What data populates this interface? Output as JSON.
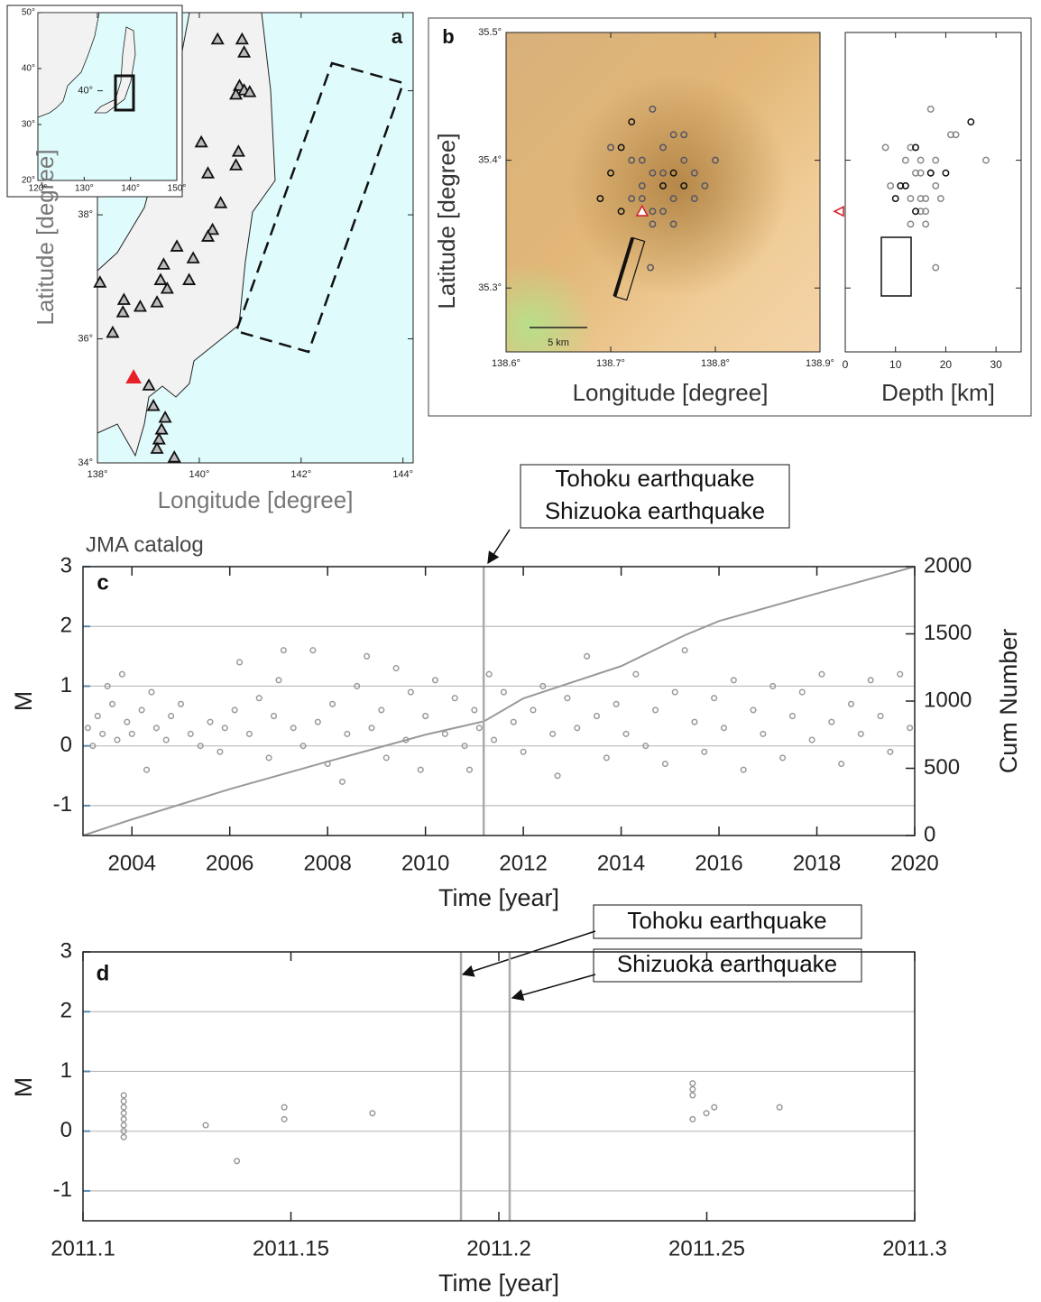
{
  "chart_data": [
    {
      "type": "map",
      "label": "a",
      "xlabel": "Longitude [degree]",
      "ylabel": "Latitude [degree]",
      "xlim": [
        138,
        144.2
      ],
      "ylim": [
        34,
        41.26
      ],
      "xticks": [
        {
          "value": 138,
          "label": "138°"
        },
        {
          "value": 140,
          "label": "140°"
        },
        {
          "value": 142,
          "label": "142°"
        },
        {
          "value": 144,
          "label": "144°"
        }
      ],
      "yticks": [
        {
          "value": 34,
          "label": "34°"
        },
        {
          "value": 36,
          "label": "36°"
        },
        {
          "value": 38,
          "label": "38°"
        },
        {
          "value": 40,
          "label": "40°"
        }
      ],
      "stations": {
        "lon": [
          140.36,
          140.84,
          140.88,
          140.79,
          140.88,
          140.72,
          140.99,
          140.04,
          140.77,
          140.72,
          140.17,
          140.42,
          140.26,
          140.17,
          139.56,
          139.88,
          139.3,
          139.8,
          139.24,
          139.37,
          139.17,
          138.52,
          138.84,
          138.5,
          138.05,
          138.3,
          139.01,
          139.1,
          139.33,
          139.26,
          139.21,
          139.17,
          139.51
        ],
        "lat": [
          40.83,
          40.83,
          40.62,
          40.08,
          40.01,
          39.94,
          39.98,
          39.17,
          39.02,
          38.8,
          38.67,
          38.19,
          37.76,
          37.65,
          37.49,
          37.3,
          37.2,
          36.95,
          36.95,
          36.81,
          36.59,
          36.63,
          36.52,
          36.43,
          36.91,
          36.1,
          35.25,
          34.92,
          34.73,
          34.54,
          34.38,
          34.23,
          34.09
        ]
      },
      "volcano": {
        "lon": [
          138.71
        ],
        "lat": [
          35.38
        ],
        "color": "#e8202a"
      },
      "inset": {
        "xlim": [
          120,
          150
        ],
        "ylim": [
          20,
          50
        ],
        "xticks": [
          {
            "value": 120,
            "label": "120°"
          },
          {
            "value": 130,
            "label": "130°"
          },
          {
            "value": 140,
            "label": "140°"
          },
          {
            "value": 150,
            "label": "150°"
          }
        ],
        "yticks": [
          {
            "value": 20,
            "label": "20°"
          },
          {
            "value": 30,
            "label": "30°"
          },
          {
            "value": 40,
            "label": "40°"
          },
          {
            "value": 50,
            "label": "50°"
          }
        ]
      }
    },
    {
      "type": "map",
      "label": "b",
      "xlabel": "Longitude [degree]",
      "ylabel": "Latitude [degree]",
      "xlim": [
        138.6,
        138.9
      ],
      "ylim": [
        35.25,
        35.5
      ],
      "xticks": [
        {
          "value": 138.6,
          "label": "138.6°"
        },
        {
          "value": 138.7,
          "label": "138.7°"
        },
        {
          "value": 138.8,
          "label": "138.8°"
        },
        {
          "value": 138.9,
          "label": "138.9°"
        }
      ],
      "yticks": [
        {
          "value": 35.3,
          "label": "35.3°"
        },
        {
          "value": 35.4,
          "label": "35.4°"
        },
        {
          "value": 35.5,
          "label": "35.5°"
        }
      ],
      "scale_label": "5 km",
      "events": {
        "lon": [
          138.75,
          138.74,
          138.76,
          138.73,
          138.77,
          138.72,
          138.78,
          138.75,
          138.7,
          138.79,
          138.74,
          138.76,
          138.71,
          138.73,
          138.77,
          138.75,
          138.72,
          138.78,
          138.74,
          138.76,
          138.69,
          138.8,
          138.75,
          138.73,
          138.71,
          138.77,
          138.74,
          138.7,
          138.76,
          138.72,
          138.738
        ],
        "lat": [
          35.38,
          35.39,
          35.37,
          35.4,
          35.38,
          35.37,
          35.39,
          35.41,
          35.39,
          35.38,
          35.36,
          35.42,
          35.41,
          35.37,
          35.4,
          35.36,
          35.43,
          35.37,
          35.44,
          35.35,
          35.37,
          35.4,
          35.39,
          35.38,
          35.36,
          35.42,
          35.35,
          35.41,
          35.39,
          35.4,
          35.316
        ],
        "depth": [
          12,
          14,
          16,
          18,
          11,
          15,
          17,
          13,
          20,
          9,
          16,
          22,
          14,
          19,
          12,
          15,
          25,
          13,
          17,
          16,
          10,
          28,
          15,
          18,
          14,
          21,
          13,
          8,
          17,
          15,
          18
        ]
      },
      "volcano": {
        "lon": [
          138.73
        ],
        "lat": [
          35.36
        ],
        "depth": [
          0
        ],
        "color": "#d0262c"
      },
      "depth_panel": {
        "xlabel": "Depth [km]",
        "xlim": [
          0,
          35
        ],
        "xticks": [
          0,
          10,
          20,
          30
        ]
      }
    },
    {
      "type": "scatter",
      "label": "c",
      "title": "JMA catalog",
      "xlabel": "Time [year]",
      "ylabel": "M",
      "y2label": "Cum Number",
      "xlim": [
        2003,
        2020
      ],
      "xticks": [
        2004,
        2006,
        2008,
        2010,
        2012,
        2014,
        2016,
        2018,
        2020
      ],
      "ylim": [
        -1.5,
        3
      ],
      "yticks": [
        -1,
        0,
        1,
        2,
        3
      ],
      "y2lim": [
        0,
        2000
      ],
      "y2ticks": [
        0,
        500,
        1000,
        1500,
        2000
      ],
      "grid": true,
      "color": "#999999",
      "x": [
        2003.1,
        2003.2,
        2003.3,
        2003.4,
        2003.5,
        2003.6,
        2003.7,
        2003.8,
        2003.9,
        2004.0,
        2004.2,
        2004.3,
        2004.4,
        2004.5,
        2004.7,
        2004.8,
        2005.0,
        2005.2,
        2005.4,
        2005.6,
        2005.8,
        2005.9,
        2006.1,
        2006.2,
        2006.4,
        2006.6,
        2006.8,
        2006.9,
        2007.0,
        2007.1,
        2007.3,
        2007.5,
        2007.7,
        2007.8,
        2008.0,
        2008.1,
        2008.3,
        2008.4,
        2008.6,
        2008.8,
        2008.9,
        2009.1,
        2009.2,
        2009.4,
        2009.6,
        2009.7,
        2009.9,
        2010.0,
        2010.2,
        2010.4,
        2010.6,
        2010.8,
        2010.9,
        2011.0,
        2011.1,
        2011.3,
        2011.4,
        2011.6,
        2011.8,
        2012.0,
        2012.2,
        2012.4,
        2012.6,
        2012.7,
        2012.9,
        2013.1,
        2013.3,
        2013.5,
        2013.7,
        2013.9,
        2014.1,
        2014.3,
        2014.5,
        2014.7,
        2014.9,
        2015.1,
        2015.3,
        2015.5,
        2015.7,
        2015.9,
        2016.1,
        2016.3,
        2016.5,
        2016.7,
        2016.9,
        2017.1,
        2017.3,
        2017.5,
        2017.7,
        2017.9,
        2018.1,
        2018.3,
        2018.5,
        2018.7,
        2018.9,
        2019.1,
        2019.3,
        2019.5,
        2019.7,
        2019.9
      ],
      "values": [
        0.3,
        0.0,
        0.5,
        0.2,
        1.0,
        0.7,
        0.1,
        1.2,
        0.4,
        0.2,
        0.6,
        -0.4,
        0.9,
        0.3,
        0.1,
        0.5,
        0.7,
        0.2,
        0.0,
        0.4,
        -0.1,
        0.3,
        0.6,
        1.4,
        0.2,
        0.8,
        -0.2,
        0.5,
        1.1,
        1.6,
        0.3,
        0.0,
        1.6,
        0.4,
        -0.3,
        0.7,
        -0.6,
        0.2,
        1.0,
        1.5,
        0.3,
        0.6,
        -0.2,
        1.3,
        0.1,
        0.9,
        -0.4,
        0.5,
        1.1,
        0.2,
        0.8,
        0.0,
        -0.4,
        0.6,
        0.3,
        1.2,
        0.1,
        0.9,
        0.4,
        -0.1,
        0.6,
        1.0,
        0.2,
        -0.5,
        0.8,
        0.3,
        1.5,
        0.5,
        -0.2,
        0.7,
        0.2,
        1.2,
        0.0,
        0.6,
        -0.3,
        0.9,
        1.6,
        0.4,
        -0.1,
        0.8,
        0.3,
        1.1,
        -0.4,
        0.6,
        0.2,
        1.0,
        -0.2,
        0.5,
        0.9,
        0.1,
        1.2,
        0.4,
        -0.3,
        0.7,
        0.2,
        1.1,
        0.5,
        -0.1,
        1.2,
        0.3
      ],
      "cumulative": {
        "axis": "y2",
        "x": [
          2003,
          2004,
          2006,
          2008,
          2010,
          2011.2,
          2012,
          2014,
          2015.3,
          2016,
          2018,
          2020
        ],
        "values": [
          0,
          120,
          345,
          550,
          750,
          850,
          1020,
          1260,
          1490,
          1595,
          1800,
          2000
        ]
      },
      "event_x": [
        2011.19
      ],
      "annotations": [
        "Tohoku earthquake",
        "Shizuoka earthquake"
      ]
    },
    {
      "type": "scatter",
      "label": "d",
      "xlabel": "Time [year]",
      "ylabel": "M",
      "xlim": [
        2011.1,
        2011.3
      ],
      "xticks": [
        2011.1,
        2011.15,
        2011.2,
        2011.25,
        2011.3
      ],
      "ylim": [
        -1.5,
        3
      ],
      "yticks": [
        -1,
        0,
        1,
        2,
        3
      ],
      "grid": true,
      "color": "#999999",
      "x": [
        2011.1098,
        2011.1098,
        2011.1098,
        2011.1098,
        2011.1098,
        2011.1098,
        2011.1098,
        2011.1098,
        2011.1295,
        2011.137,
        2011.1484,
        2011.1484,
        2011.1696,
        2011.2466,
        2011.2466,
        2011.2466,
        2011.2466,
        2011.2499,
        2011.2518,
        2011.2675
      ],
      "values": [
        -0.1,
        0,
        0.1,
        0.2,
        0.3,
        0.4,
        0.5,
        0.6,
        0.1,
        -0.5,
        0.2,
        0.4,
        0.3,
        0.2,
        0.6,
        0.7,
        0.8,
        0.3,
        0.4,
        0.4
      ],
      "event_x": [
        2011.1909,
        2011.2026
      ],
      "annotations": [
        "Tohoku earthquake",
        "Shizuoka earthquake"
      ]
    }
  ]
}
